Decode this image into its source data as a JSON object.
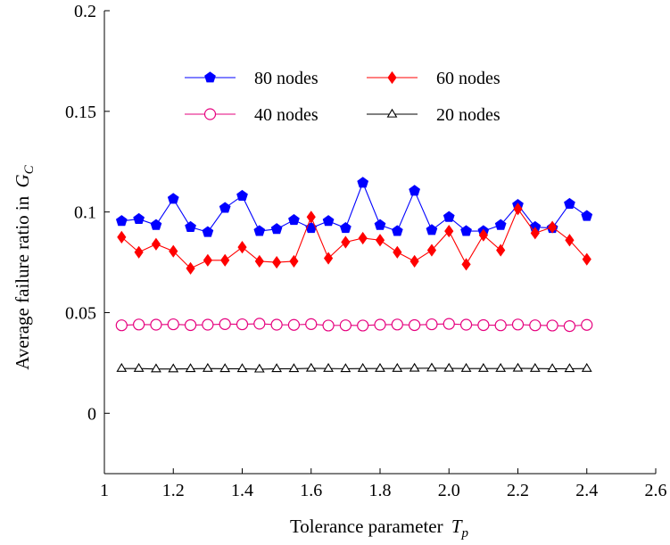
{
  "chart_data": {
    "type": "line",
    "xlabel": "Tolerance parameter",
    "xlabel_sub": "p",
    "xlabel_var": "T",
    "ylabel": "Average failure ratio in",
    "ylabel_var": "G",
    "ylabel_sub": "C",
    "xlim": [
      1,
      2.6
    ],
    "ylim": [
      -0.03,
      0.2
    ],
    "xticks": [
      1,
      1.2,
      1.4,
      1.6,
      1.8,
      2,
      2.2,
      2.4,
      2.6
    ],
    "xtick_labels": [
      "1",
      "1.2",
      "1.4",
      "1.6",
      "1.8",
      "2.0",
      "2.2",
      "2.4",
      "2.6"
    ],
    "yticks": [
      0,
      0.05,
      0.1,
      0.15,
      0.2
    ],
    "ytick_labels": [
      "0",
      "0.05",
      "0.1",
      "0.15",
      "0.2"
    ],
    "grid": false,
    "legend_position": "top-center",
    "x": [
      1.05,
      1.1,
      1.15,
      1.2,
      1.25,
      1.3,
      1.35,
      1.4,
      1.45,
      1.5,
      1.55,
      1.6,
      1.65,
      1.7,
      1.75,
      1.8,
      1.85,
      1.9,
      1.95,
      2.0,
      2.05,
      2.1,
      2.15,
      2.2,
      2.25,
      2.3,
      2.35,
      2.4
    ],
    "series": [
      {
        "name": "80 nodes",
        "color": "#0000ff",
        "marker": "pentagon-filled",
        "values": [
          0.0955,
          0.0965,
          0.0935,
          0.1065,
          0.0925,
          0.09,
          0.102,
          0.108,
          0.0905,
          0.0915,
          0.096,
          0.092,
          0.0955,
          0.092,
          0.1145,
          0.0935,
          0.0905,
          0.1105,
          0.091,
          0.0975,
          0.0905,
          0.0905,
          0.0935,
          0.1035,
          0.0925,
          0.092,
          0.104,
          0.098
        ]
      },
      {
        "name": "60 nodes",
        "color": "#ff0000",
        "marker": "diamond-filled",
        "values": [
          0.0875,
          0.08,
          0.084,
          0.0805,
          0.072,
          0.076,
          0.076,
          0.0825,
          0.0755,
          0.075,
          0.0755,
          0.0975,
          0.077,
          0.085,
          0.087,
          0.086,
          0.08,
          0.0755,
          0.081,
          0.0905,
          0.074,
          0.0885,
          0.081,
          0.1015,
          0.0895,
          0.0925,
          0.086,
          0.0765
        ]
      },
      {
        "name": "40 nodes",
        "color": "#e6007e",
        "marker": "circle-open",
        "values": [
          0.0437,
          0.0441,
          0.044,
          0.0442,
          0.0438,
          0.044,
          0.0443,
          0.0442,
          0.0445,
          0.044,
          0.0439,
          0.0443,
          0.0436,
          0.0437,
          0.0436,
          0.044,
          0.0441,
          0.0438,
          0.0442,
          0.0444,
          0.044,
          0.0438,
          0.0437,
          0.0441,
          0.0437,
          0.0436,
          0.0433,
          0.0439
        ]
      },
      {
        "name": "20 nodes",
        "color": "#000000",
        "marker": "triangle-open",
        "values": [
          0.0222,
          0.0222,
          0.022,
          0.022,
          0.0221,
          0.0222,
          0.0221,
          0.0221,
          0.0219,
          0.0221,
          0.0221,
          0.0223,
          0.0222,
          0.0221,
          0.0222,
          0.0222,
          0.0222,
          0.0223,
          0.0224,
          0.0223,
          0.0222,
          0.0222,
          0.0222,
          0.0223,
          0.0222,
          0.0221,
          0.0221,
          0.0222
        ]
      }
    ]
  }
}
